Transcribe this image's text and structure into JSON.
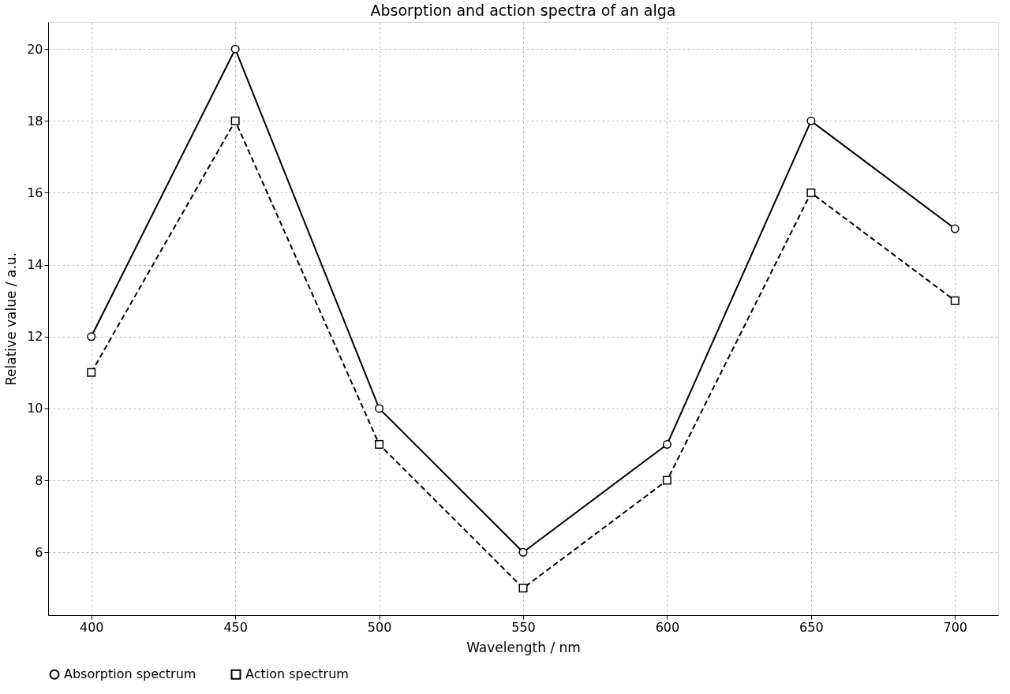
{
  "chart_data": {
    "type": "line",
    "title": "Absorption and action spectra of an alga",
    "xlabel": "Wavelength / nm",
    "ylabel": "Relative value / a.u.",
    "x": [
      400,
      450,
      500,
      550,
      600,
      650,
      700
    ],
    "series": [
      {
        "name": "Absorption spectrum",
        "color": "#000000",
        "values": [
          12,
          20,
          10,
          6,
          9,
          18,
          15
        ],
        "marker": "circle",
        "line_style": "solid"
      },
      {
        "name": "Action spectrum",
        "color": "#000000",
        "values": [
          11,
          18,
          9,
          5,
          8,
          16,
          13
        ],
        "marker": "square",
        "line_style": "dashed"
      }
    ],
    "xlim": [
      385,
      715
    ],
    "xticks": [
      400,
      450,
      500,
      550,
      600,
      650,
      700
    ],
    "ylim": [
      4.25,
      20.75
    ],
    "yticks": [
      6,
      8,
      10,
      12,
      14,
      16,
      18,
      20
    ],
    "grid": true,
    "legend": "bottom"
  }
}
